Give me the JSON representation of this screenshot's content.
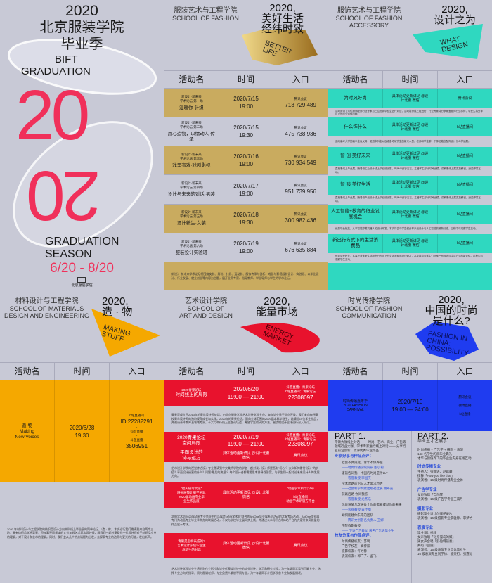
{
  "colors": {
    "background": "#c8c9d6",
    "gold": "#c9ab5f",
    "teal": "#2fd8c0",
    "orange": "#f5a800",
    "red": "#e8122d",
    "blue": "#1f3cf0",
    "pink": "#f0305a"
  },
  "table_headers": [
    "活动名",
    "时间",
    "入口"
  ],
  "poster": {
    "year": "2020",
    "title1": "北京服装学院",
    "title2": "毕业季",
    "eng1": "BIFT",
    "eng2": "GRADUATION",
    "big": "20",
    "eng3": "GRADUATION",
    "eng4": "SEASON",
    "dates": "6/20 - 8/20",
    "logo_text": "北京服装学院"
  },
  "fashion": {
    "school_cn": "服装艺术与工程学院",
    "school_en": "SCHOOL OF FASHION",
    "theme1": "2020,",
    "theme2": "美好生活",
    "theme3": "经纬时致",
    "eng": "BETTER LIFE",
    "rows": [
      {
        "series": "新设计·新未来",
        "forum": "学术论坛 第一场",
        "name": "温暖你·针织",
        "date": "2020/7/15",
        "time": "19:00",
        "platform": "腾讯会议",
        "id": "713 729 489"
      },
      {
        "series": "新设计·新未来",
        "forum": "学术论坛 第二场",
        "name": "用心造物，以情动人·传承",
        "date": "2020/7/15",
        "time": "19:30",
        "platform": "腾讯会议",
        "id": "475 738 936"
      },
      {
        "series": "新设计·新未来",
        "forum": "学术论坛 第三场",
        "name": "戏里有戏·戏剧影视",
        "date": "2020/7/16",
        "time": "19:00",
        "platform": "腾讯会议",
        "id": "730 934 549"
      },
      {
        "series": "新设计·新未来",
        "forum": "学术论坛 第四场",
        "name": "设计与未来的对话·男装",
        "date": "2020/7/17",
        "time": "19:00",
        "platform": "腾讯会议",
        "id": "951 739 956"
      },
      {
        "series": "新设计·新未来",
        "forum": "学术论坛 第五场",
        "name": "设计新生·女装",
        "date": "2020/7/18",
        "time": "19:30",
        "platform": "腾讯会议",
        "id": "300 982 436"
      },
      {
        "series": "新设计·新未来",
        "forum": "学术论坛 第六场",
        "name": "服装设计实验班",
        "date": "2020/7/19",
        "time": "19:00",
        "platform": "腾讯会议",
        "id": "676 635 884"
      }
    ],
    "note": "新设计·新未来学术论坛将围绕女装、男装、针织、运动装、服饰传承与创新、戏剧与影视服装设计、实验班、以毕业设计、行业发展、就业创业等内容为主题，展开业界专家、指导教师、学业导师与学生的学术论坛。"
  },
  "accessory": {
    "school_cn": "服饰艺术与工程学院",
    "school_en1": "SCHOOL OF FASHION",
    "school_en2": "ACCESSORY",
    "theme1": "2020,",
    "theme2": "设计之为",
    "eng": "WHAT DESIGN",
    "rows": [
      {
        "name": "为时风好尚",
        "time": "具体活动更新详见 @设计北服 微信",
        "entry": "腾讯会议",
        "desc": "活动邀请了六位服饰配饰行业专家与三位优秀毕业生进行对谈，活动将分成三组进行，行业专家将分享珠宝服饰行业心得，毕业生将分享自己的毕业创作历程。"
      },
      {
        "name": "什么饰什么",
        "time": "具体活动更新详见 @设计北服 微信",
        "entry": "b站直播间",
        "desc": "面向高考大学的高中生及父母，诺邀本科生以及准备考研究生的新来人员，老师和学生聊一下饰品箱包配饰设计什么样话题。"
      },
      {
        "name": "智 创 美好未来",
        "time": "具体活动更新详见 @设计北服 微信",
        "entry": "b站直播间",
        "desc": "直播看线上毕业展，随着设工业设计线上毕业设计展，时间40分钟左右，主播学生部分时间出镜，讲解看线上展览加解说，通过弹幕互动。"
      },
      {
        "name": "智 臻 美好生活",
        "time": "具体活动更新详见 @设计北服 微信",
        "entry": "b站直播间",
        "desc": "直播看线上毕业展，随着设产品设计线上毕业设计展，时间40分钟左右，主播学生部分时间出镜，讲解看线上展览加解说，通过弹幕互动。"
      },
      {
        "name": "人工智能+教育的行业发展机会",
        "time": "具体活动更新详见 @设计北服 微信",
        "entry": "b站直播间",
        "desc": "优秀毕业校友，从事智能穿戴机器人的设计研发，本次将会与学生们分享产品设计与人工智能的最新动态，过程中与观察学生互动。"
      },
      {
        "name": "新出行方式下的生活消费品",
        "time": "具体活动更新详见 @设计北服 微信",
        "entry": "b站直播间",
        "desc": "优秀毕业校友，从事针对未来生活新出行方式下的生活消费品设计研发，本次将会与学生们分享产品设计与生活方式的新变化，过程中与观察学生互动。"
      }
    ]
  },
  "materials": {
    "school_cn": "材料设计与工程学院",
    "school_en1": "SCHOOL OF MATERIALS",
    "school_en2": "DESIGN AND ENGINEERING",
    "theme1": "2020,",
    "theme2": "造 · 物",
    "eng": "MAKING STUFF",
    "row": {
      "name1": "造·物",
      "name2": "Making",
      "name3": "New Voices",
      "date": "2020/6/28",
      "time": "19:30",
      "p1": "b站直播间",
      "id1": "ID:22282291",
      "dash": "-",
      "p2": "抖音直播",
      "p3": "斗鱼直播",
      "id2": "3506951"
    },
    "note": "2020 年材料设计与工程学院的纺织品设计方向本科线上毕业展的简单论坛，“造 · 物”。本次论坛我们邀请到来自两岸三地，具有纺织品学术背景，但从事不同领域的 8 位年轻艺术家和设计师，跟我们一起分享看作一代设计师对于纺织品专业的理解，对于设计和艺术的理解。同时，我们会从几个热点话题为出发，去探索专业的边界与更光的可能，发出新声。"
  },
  "art": {
    "school_cn": "艺术设计学院",
    "school_en1": "SCHOOL OF",
    "school_en2": "ART AND DESIGN",
    "theme1": "2020,",
    "theme2": "能量市场",
    "eng": "ENERGY MARKET",
    "r1": {
      "a": "2020青果论坛",
      "b": "时间线上的局限",
      "date": "2020/6/20",
      "time": "19:00 — 21:00",
      "p1": "抖音直播：青果论坛",
      "p2": "b站直播间：青果论坛",
      "id": "22308097"
    },
    "d1": "青果是成立于2013年的青年设计师论坛，由北京服装学院艺术设计学院主办。每年毕业季于北京开放，我们来自每所高校青年设计师的独特视角成长和实践。2020年的青果论坛，面向全球范围的2020届本科毕业生，邀请近10位学生作品，并邀请青年教师及领域专家，于六月举行线上主题论坛会，希望学生的研究方法，围绕相设计全球进行深入探讨。",
    "r2": {
      "a": "2020青果论坛",
      "b": "空间局限",
      "date": "2020/7/19",
      "time": "19:00 — 21:00",
      "p1": "抖音直播：青果论坛",
      "p2": "b站直播间：青果论坛",
      "id": "22308097"
    },
    "r3": {
      "a": "平面设计的",
      "b": "诗与远方",
      "time": "具体活动更新详见 @设计北服 微信",
      "entry": "腾讯会议"
    },
    "d3": "艺术设计学院的视觉传达设计专业邀请到中央美术学院的学者一起对谈，设计师是否有“初心”？大众如何看待“设计”的价值？平面设计经营的什么？问题“最后的流量”？每个设计者都需要思考并寻找答案，与学生们一起讨论未来设计人的发展方向。",
    "r4": {
      "a": "“错火锅专卖店”",
      "b": "映画展暨北服学术趴",
      "c": "2020届动画专业毕",
      "d": "业生作品展",
      "time": "具体活动更新详见 @设计北服 微信",
      "e1": "“动画学术趴”公众号",
      "e2": "-",
      "e3": "b站直播间",
      "e4": "动画学术趴官方平台"
    },
    "d4": "北服学术趴2020届动画专业毕业生作品展是“动画学术趴”联合的AniOne毕业展系列活动的北服专场活动。AniOne毕业展专门为动画专业毕业季举办的联展活动，不仅与学校毕业展同步上线，并通过公众号平台和B站平台为大家带来高质量的作品展示专场。",
    "r5": {
      "a": "青果是怎样长成的?",
      "b": "艺术设计学院毕业生",
      "c": "与新生的对话",
      "time": "具体活动更新详见 @设计北服 微信",
      "entry": "腾讯会议"
    },
    "d5": "艺术设计学院毕业生将分别作个影片和毕业代表谈设计中的毕业设计，学习和研究过程，为一年级同学看到了解专业，选择专业方向的指导，同时邀请老师，专业负责人解析不同专业，为一年级同学介绍学院各专业和发展情况。"
  },
  "communication": {
    "school_cn": "时尚传播学院",
    "school_en1": "SCHOOL OF FASHION",
    "school_en2": "COMMUNICATION",
    "theme1": "2020,",
    "theme2": "中国的时尚",
    "theme3": "是什么?",
    "eng": "FASHION IN CHINA: POSSIBILITY",
    "row": {
      "n1": "时尚传播嘉年华",
      "n2": "2020 FASHION",
      "n3": "CARNIVAL",
      "date": "2020/7/10",
      "time": "19:00 — 24:00",
      "e1": "腾讯会议",
      "e2": "-",
      "e3": "微博直播",
      "e4": "-",
      "e5": "b站直播"
    },
    "part1": {
      "title": "PART 1.",
      "intro": "带领大咖线上对话 —— 时尚、艺术、商业、广告等领域行业大咖，学术专家进行线上对话 —— 分享行业前沿创新，点评优秀毕业作品",
      "h1": "专家分享与作品点评：",
      "items": [
        [
          "社会不佩突变，青年不佩养越",
          "——时尚传播学院院长 殷小莉"
        ],
        [
          "谨前告词我：中国的时尚是什么?",
          "——客座教授 李国庆"
        ],
        [
          "学术出路前沿与人才需求趋势",
          "——社会科学文献出版社社长 谢寿光"
        ],
        [
          "前路后路 你问我答",
          "——客座教授 龙杰浩"
        ],
        [
          "你能讲某几次失败个你的需要成就你的未来",
          "——客座教授 白佳纲"
        ],
        [
          "如何能建你未来的团队",
          "——腾讯文创著名负责人 王娜"
        ],
        [
          "学院教影教授",
          "——“下语广告教父”著名广告语毕业生"
        ]
      ],
      "h2": "校友分享与作品点评：",
      "alumni": [
        "时尚传播校友：苏明",
        "广告学校友：高传阳",
        "摄影校友：许力静",
        "表演校友：郭广子、孟飞"
      ]
    },
    "part2": {
      "title": "PART 2.",
      "subtitle": "毕业生才艺展示",
      "intro": [
        "时尚传播 + 广告学 + 摄影 + 表演",
        "143 名学生的云毕业典礼",
        "才华与颜值齐飞的毕业生内身在线互动"
      ],
      "groups": [
        {
          "h": "时尚传播专业",
          "l": [
            "主持人：张静语、赵晨颖",
            "街舞「How you like that」",
            "表演者：16 级时尚传播专业全体"
          ]
        },
        {
          "h": "广告学专业",
          "l": [
            "女声独唱「自然醒」",
            "表演者：16 级广告学专业王晨月"
          ]
        },
        {
          "h": "摄影专业",
          "l": [
            "摄影毕业设计创作纪录片",
            "表演者：16 级摄影专业李雅静、李梦竹"
          ]
        },
        {
          "h": "表演专业",
          "l": [
            "毕业设计视频",
            "女声独唱「化身孤岛的鲸」",
            "男女声合唱「舒伯特前奏」",
            "舞蹈「团圆」",
            "表演者：16 级表演专业全体毕业生",
            "16 级表演专业同学徐、戚天行、张霆韬"
          ]
        }
      ]
    }
  }
}
